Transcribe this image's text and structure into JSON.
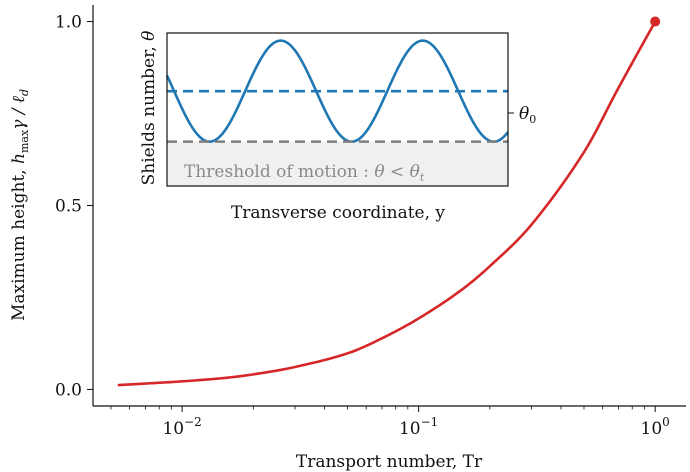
{
  "chart_data": [
    {
      "type": "line",
      "xscale": "log",
      "xlabel": "Transport number, Tr",
      "ylabel": "Maximum height, h_max γ / ℓ_d",
      "ylabel_parts": {
        "pre": "Maximum height, ",
        "h": "h",
        "sub": "max",
        "rest": "γ / ℓ",
        "sub2": "d"
      },
      "xlim": [
        0.0042,
        1.35
      ],
      "ylim": [
        -0.045,
        1.045
      ],
      "xticks": [
        {
          "value": 0.01,
          "base": "10",
          "exp": "−2"
        },
        {
          "value": 0.1,
          "base": "10",
          "exp": "−1"
        },
        {
          "value": 1,
          "base": "10",
          "exp": "0"
        }
      ],
      "yticks": [
        {
          "value": 0.0,
          "label": "0.0"
        },
        {
          "value": 0.5,
          "label": "0.5"
        },
        {
          "value": 1.0,
          "label": "1.0"
        }
      ],
      "series": [
        {
          "color": "#d62728",
          "x": [
            0.0054,
            0.007,
            0.01,
            0.015,
            0.02,
            0.03,
            0.05,
            0.07,
            0.1,
            0.15,
            0.2,
            0.3,
            0.5,
            0.7,
            1.0
          ],
          "y": [
            0.012,
            0.016,
            0.022,
            0.031,
            0.041,
            0.061,
            0.098,
            0.139,
            0.193,
            0.268,
            0.335,
            0.448,
            0.645,
            0.82,
            1.0
          ]
        }
      ],
      "endpoint_marker": {
        "x": 1.0,
        "y": 1.0,
        "color": "#d62728"
      },
      "grid": false
    },
    {
      "type": "line",
      "role": "inset",
      "xlabel": "Transverse coordinate, y",
      "ylabel": "Shields number, θ",
      "ylabel_parts": {
        "pre": "Shields number, ",
        "sym": "θ"
      },
      "curve": {
        "kind": "sinusoid",
        "color": "#1f77b4",
        "mean": 0.62,
        "amplitude": 0.33,
        "periods": 2.4,
        "phase": -0.55
      },
      "mean_line": {
        "label": "θ",
        "sub": "0",
        "color": "#1f77b4",
        "value": 0.62
      },
      "threshold_line": {
        "value": 0.29,
        "color": "#808080"
      },
      "threshold_label": "Threshold of motion : θ < θ",
      "threshold_label_parts": {
        "text": "Threshold of motion : ",
        "sym": "θ < θ",
        "sub": "t"
      },
      "threshold_fill": "#f0f0f0",
      "ylim": [
        0.0,
        1.0
      ]
    }
  ]
}
